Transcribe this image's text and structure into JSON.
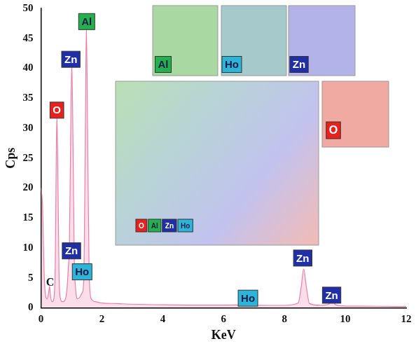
{
  "chart_data": {
    "type": "line",
    "x_label": "KeV",
    "y_label": "Cps",
    "xlim": [
      0,
      12
    ],
    "xticks": [
      0,
      2,
      4,
      6,
      8,
      10,
      12
    ],
    "ylim": [
      0,
      50
    ],
    "yticks": [
      0,
      5,
      10,
      15,
      20,
      25,
      30,
      35,
      40,
      45,
      50
    ],
    "grid": false,
    "color": "#f07ca8",
    "x": [
      0,
      0.05,
      0.1,
      0.15,
      0.2,
      0.25,
      0.28,
      0.31,
      0.36,
      0.42,
      0.47,
      0.5,
      0.52,
      0.55,
      0.59,
      0.64,
      0.7,
      0.78,
      0.85,
      0.9,
      0.93,
      0.96,
      1.01,
      1.05,
      1.09,
      1.14,
      1.2,
      1.28,
      1.35,
      1.4,
      1.45,
      1.49,
      1.53,
      1.58,
      1.65,
      1.8,
      2.0,
      2.5,
      3,
      4,
      5,
      6,
      6.6,
      6.72,
      6.85,
      7.5,
      8.0,
      8.45,
      8.55,
      8.63,
      8.72,
      8.82,
      9.2,
      9.45,
      9.57,
      9.68,
      10,
      11,
      12
    ],
    "values": [
      20,
      17,
      6,
      2,
      1.5,
      2.5,
      3.6,
      2,
      1,
      1.5,
      8,
      25,
      32,
      24,
      6,
      1.5,
      1,
      1.2,
      3,
      7,
      10,
      22,
      41,
      28,
      9,
      3,
      1.5,
      1.8,
      2.5,
      4,
      25,
      47,
      30,
      6,
      1.5,
      1,
      0.8,
      0.7,
      0.6,
      0.5,
      0.45,
      0.45,
      0.5,
      0.8,
      0.5,
      0.4,
      0.4,
      0.8,
      3.5,
      6.5,
      3.5,
      0.7,
      0.4,
      0.6,
      1.2,
      0.5,
      0.3,
      0.25,
      0.2
    ],
    "annotations": [
      {
        "text": "C",
        "x": 0.3,
        "y": 4.2
      },
      {
        "text": "O",
        "x": 0.52,
        "y": 33
      },
      {
        "text": "Zn",
        "x": 0.98,
        "y": 41.5
      },
      {
        "text": "Al",
        "x": 1.5,
        "y": 47.8
      },
      {
        "text": "Zn",
        "x": 1.0,
        "y": 9.5
      },
      {
        "text": "Ho",
        "x": 1.35,
        "y": 6
      },
      {
        "text": "Ho",
        "x": 6.8,
        "y": 1.6
      },
      {
        "text": "Zn",
        "x": 8.6,
        "y": 8.3
      },
      {
        "text": "Zn",
        "x": 9.55,
        "y": 2.1
      }
    ],
    "insets": {
      "element_colors": {
        "O": "#e8211d",
        "Al": "#22b14c",
        "Zn": "#1f2fa8",
        "Ho": "#2bb5d8"
      },
      "maps": [
        {
          "label": "Al",
          "color": "#a9d8a2"
        },
        {
          "label": "Ho",
          "color": "#a6c9cc"
        },
        {
          "label": "Zn",
          "color": "#b3b3ea"
        },
        {
          "label": "O",
          "color": "#f0aaa2"
        }
      ],
      "map_legend": [
        "O",
        "Al",
        "Zn",
        "Ho"
      ]
    }
  }
}
